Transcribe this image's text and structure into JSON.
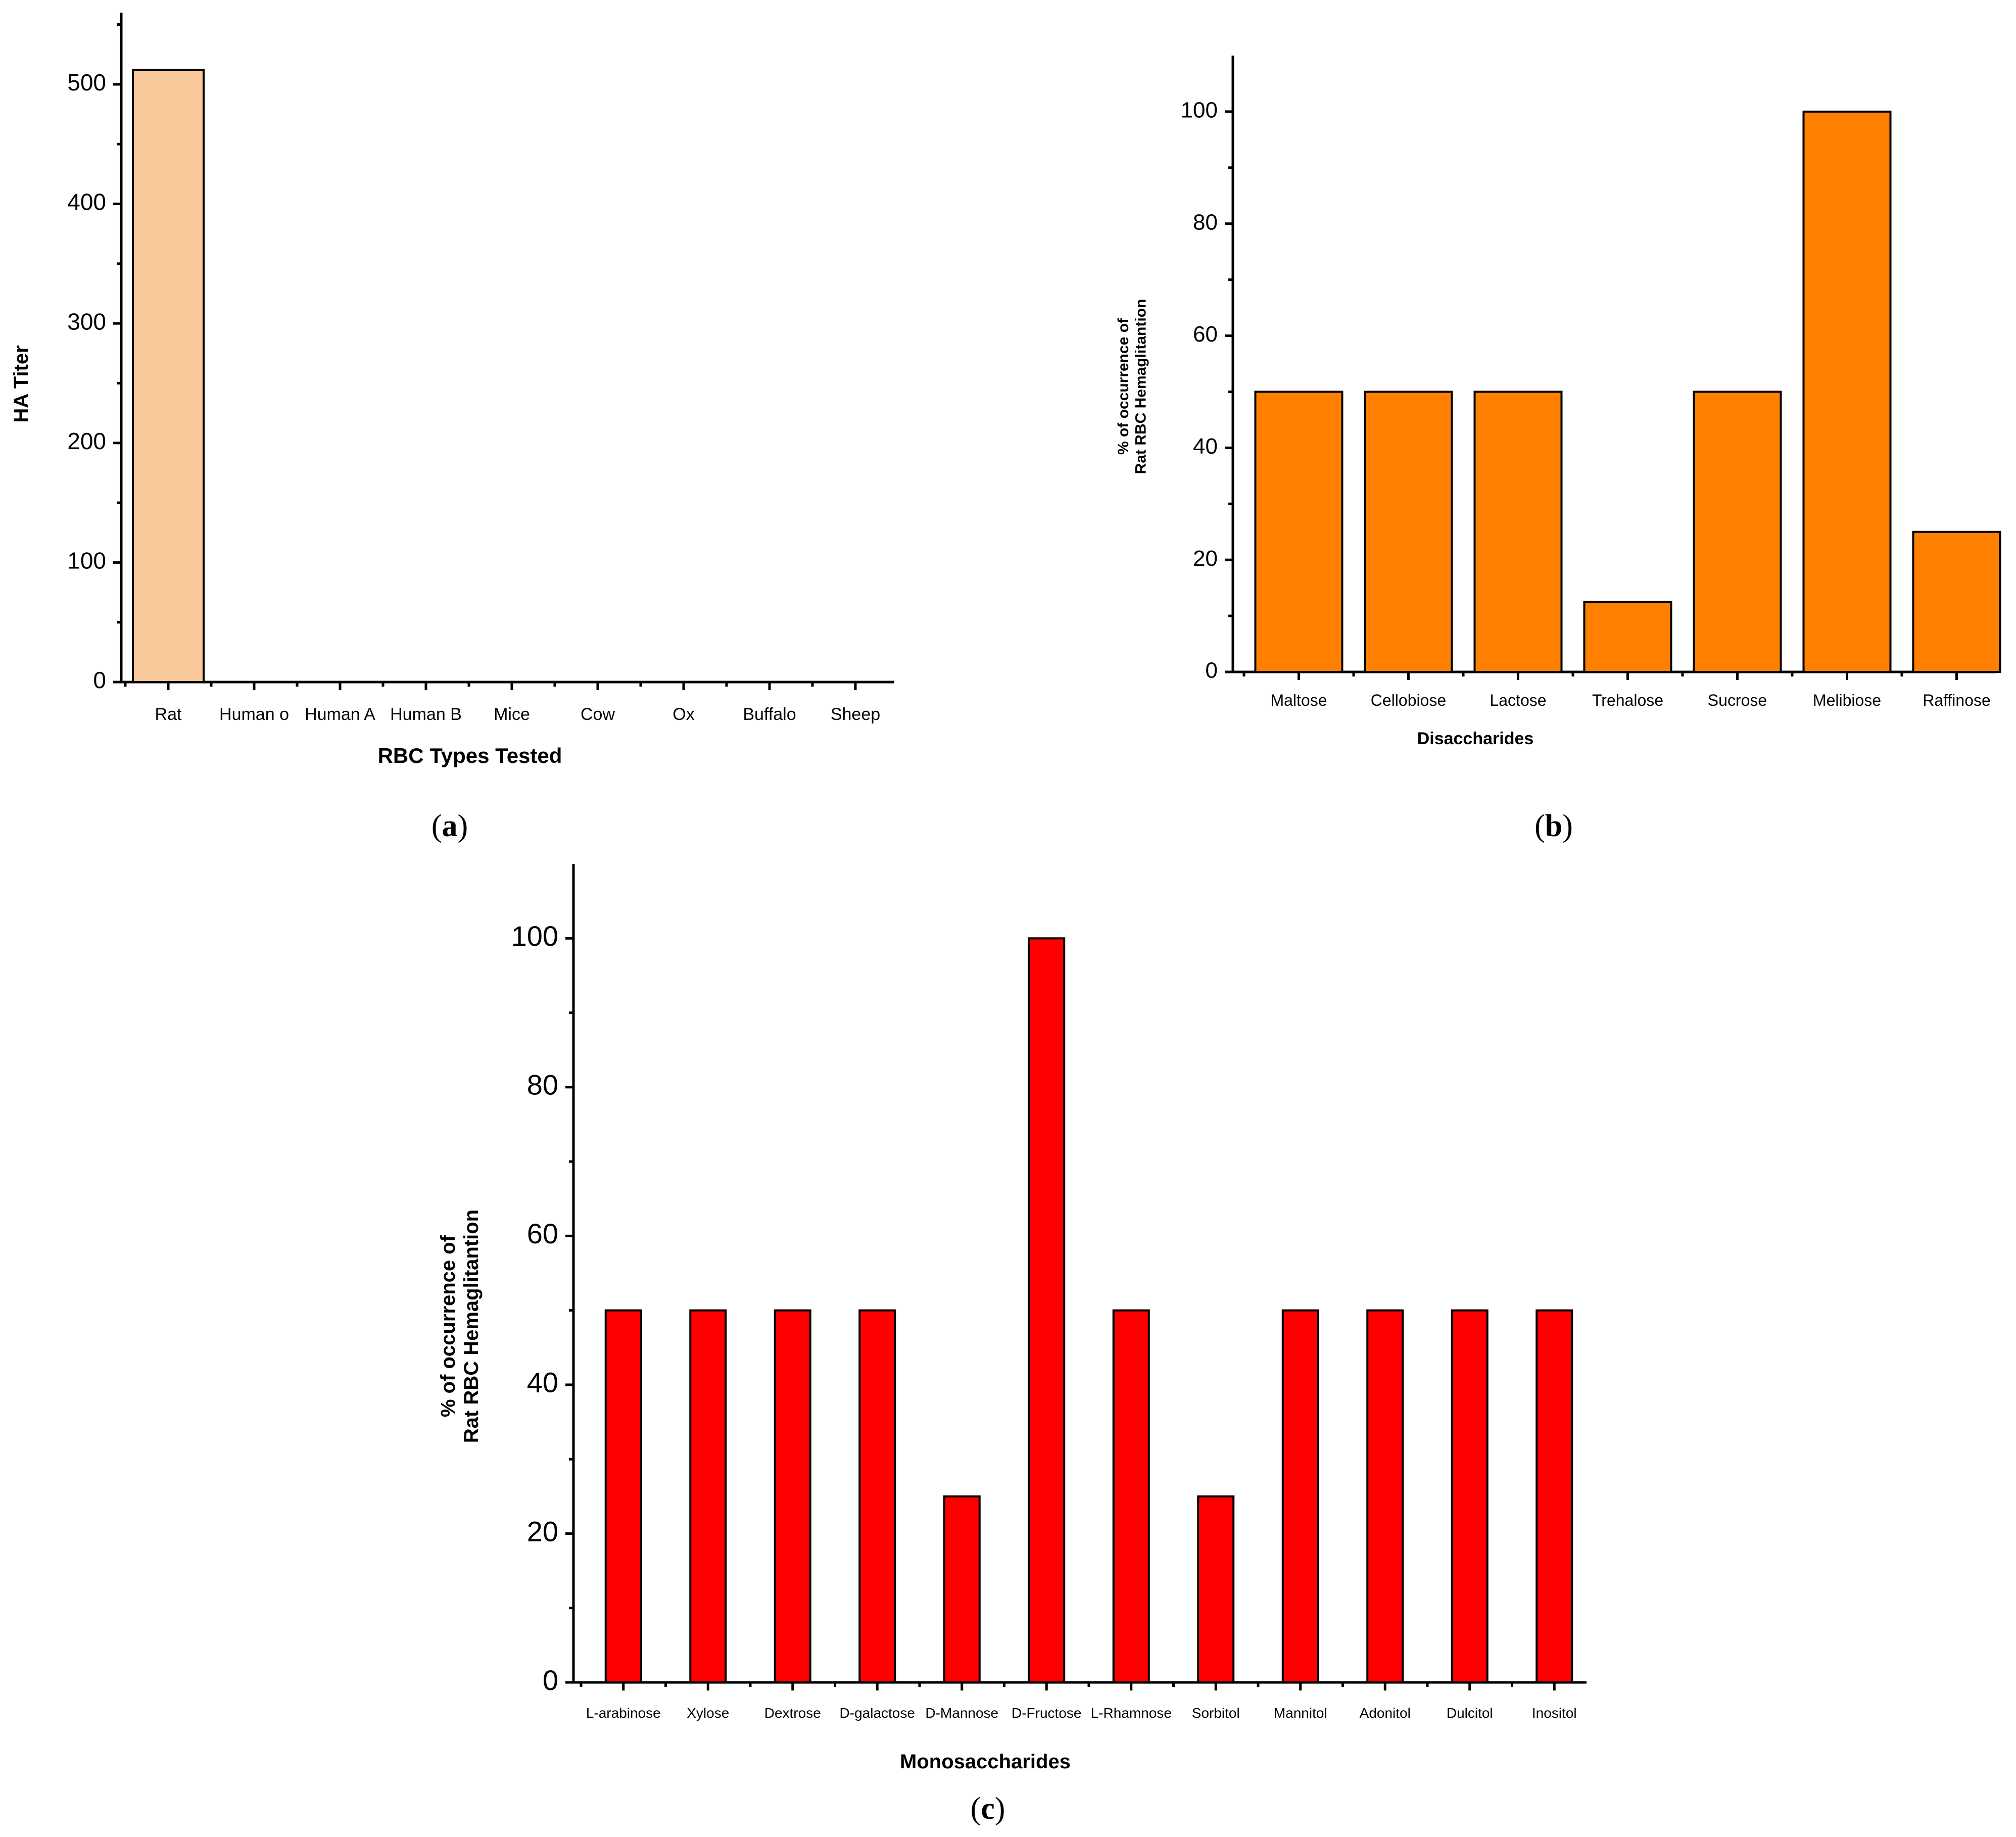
{
  "chart_data": [
    {
      "id": "a",
      "type": "bar",
      "panel_label": "a",
      "title": "",
      "xlabel": "RBC Types Tested",
      "ylabel": "HA Titer",
      "categories": [
        "Rat",
        "Human o",
        "Human A",
        "Human B",
        "Mice",
        "Cow",
        "Ox",
        "Buffalo",
        "Sheep"
      ],
      "values": [
        512,
        0,
        0,
        0,
        0,
        0,
        0,
        0,
        0
      ],
      "ylim": [
        0,
        560
      ],
      "yticks": [
        0,
        100,
        200,
        300,
        400,
        500
      ],
      "color": "#F9C89B",
      "grid": false
    },
    {
      "id": "b",
      "type": "bar",
      "panel_label": "b",
      "title": "",
      "xlabel": "Disaccharides",
      "ylabel": [
        "% of occurrence of",
        "Rat RBC Hemaglitantion"
      ],
      "categories": [
        "Maltose",
        "Cellobiose",
        "Lactose",
        "Trehalose",
        "Sucrose",
        "Melibiose",
        "Raffinose"
      ],
      "values": [
        50,
        50,
        50,
        12.5,
        50,
        100,
        25
      ],
      "ylim": [
        0,
        110
      ],
      "yticks": [
        0,
        20,
        40,
        60,
        80,
        100
      ],
      "color": "#FF7F00",
      "grid": false
    },
    {
      "id": "c",
      "type": "bar",
      "panel_label": "c",
      "title": "",
      "xlabel": "Monosaccharides",
      "ylabel": [
        "% of occurrence of",
        "Rat RBC Hemaglitantion"
      ],
      "categories": [
        "L-arabinose",
        "Xylose",
        "Dextrose",
        "D-galactose",
        "D-Mannose",
        "D-Fructose",
        "L-Rhamnose",
        "Sorbitol",
        "Mannitol",
        "Adonitol",
        "Dulcitol",
        "Inositol"
      ],
      "values": [
        50,
        50,
        50,
        50,
        25,
        100,
        50,
        25,
        50,
        50,
        50,
        50
      ],
      "ylim": [
        0,
        110
      ],
      "yticks": [
        0,
        20,
        40,
        60,
        80,
        100
      ],
      "color": "#FF0000",
      "grid": false
    }
  ]
}
